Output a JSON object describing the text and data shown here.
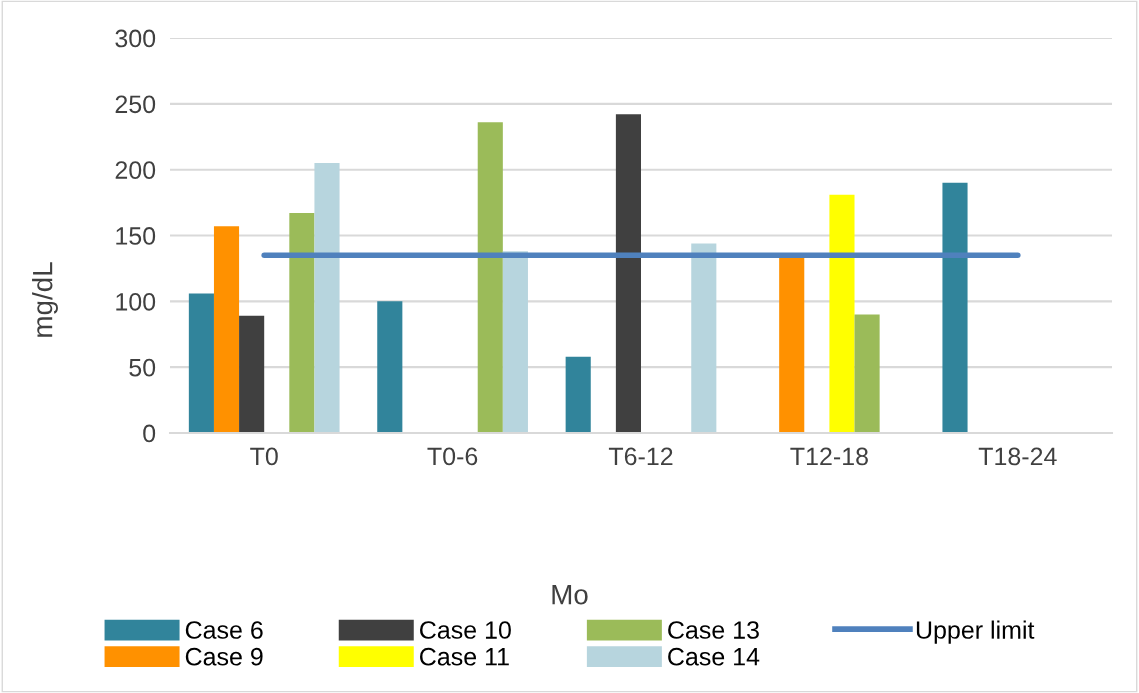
{
  "chart_data": {
    "type": "bar",
    "xlabel": "Mo",
    "ylabel": "mg/dL",
    "categories": [
      "T0",
      "T0-6",
      "T6-12",
      "T12-18",
      "T18-24"
    ],
    "series": [
      {
        "name": "Case 6",
        "color": "#31849b",
        "values": [
          106,
          100,
          58,
          null,
          190
        ]
      },
      {
        "name": "Case 9",
        "color": "#ff9100",
        "values": [
          157,
          null,
          null,
          134,
          null
        ]
      },
      {
        "name": "Case 10",
        "color": "#404040",
        "values": [
          89,
          null,
          242,
          null,
          null
        ]
      },
      {
        "name": "Case 11",
        "color": "#ffff00",
        "values": [
          null,
          null,
          null,
          181,
          null
        ]
      },
      {
        "name": "Case 13",
        "color": "#9bbb59",
        "values": [
          167,
          236,
          null,
          90,
          null
        ]
      },
      {
        "name": "Case 14",
        "color": "#b7d5de",
        "values": [
          205,
          138,
          144,
          null,
          null
        ]
      },
      {
        "name": "Upper limit",
        "type": "line",
        "color": "#4f81bd",
        "values": [
          135,
          135,
          135,
          135,
          135
        ]
      }
    ],
    "ylim": [
      0,
      300
    ],
    "yticks": [
      0,
      50,
      100,
      150,
      200,
      250,
      300
    ],
    "grid": "y",
    "legend": "bottom"
  }
}
